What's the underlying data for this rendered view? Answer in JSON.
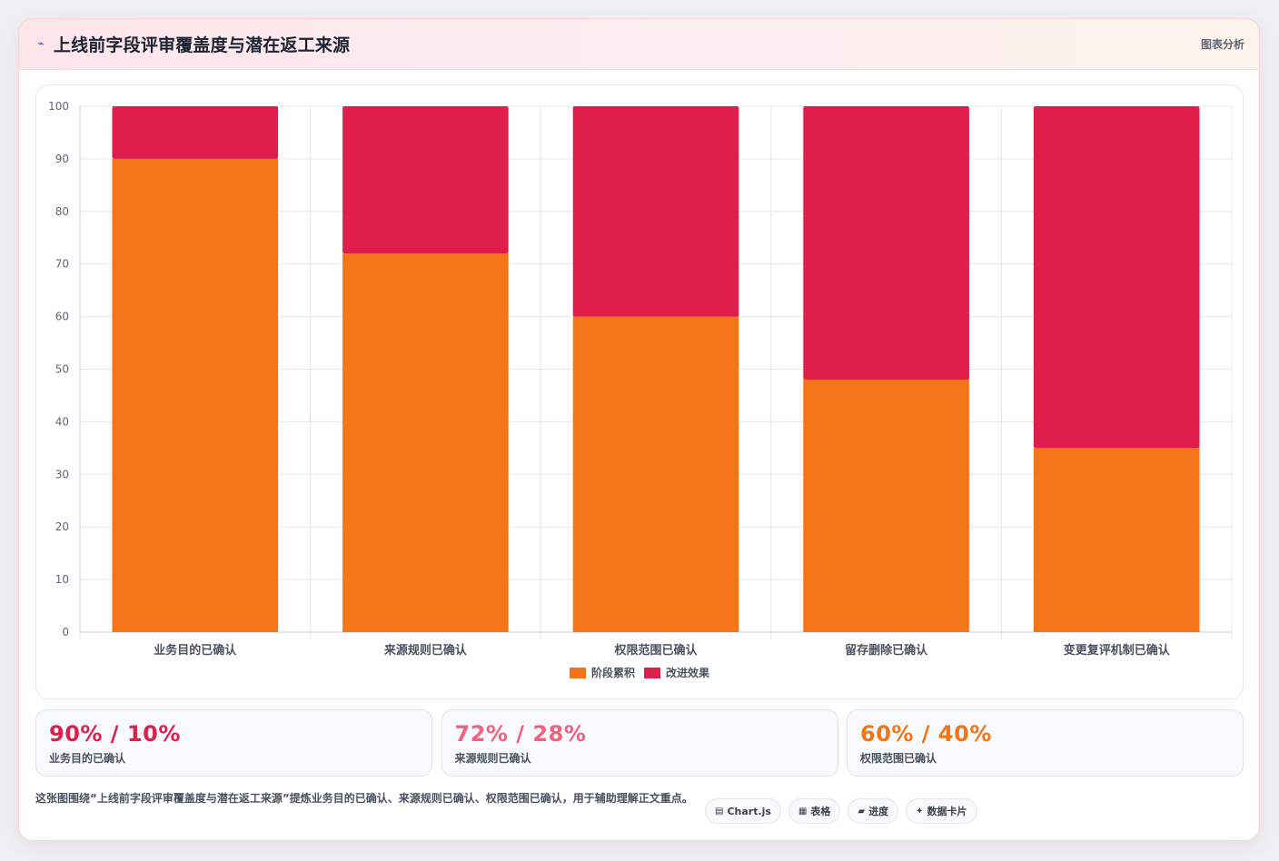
{
  "header": {
    "icon": "zap-icon",
    "title": "上线前字段评审覆盖度与潜在返工来源",
    "tag": "图表分析"
  },
  "chart_data": {
    "type": "bar",
    "stacked": true,
    "categories": [
      "业务目的已确认",
      "来源规则已确认",
      "权限范围已确认",
      "留存删除已确认",
      "变更复评机制已确认"
    ],
    "series": [
      {
        "name": "阶段累积",
        "color": "#f47418",
        "values": [
          90,
          72,
          60,
          48,
          35
        ]
      },
      {
        "name": "改进效果",
        "color": "#e01e4b",
        "values": [
          10,
          28,
          40,
          52,
          65
        ]
      }
    ],
    "yticks": [
      0,
      10,
      20,
      30,
      40,
      50,
      60,
      70,
      80,
      90,
      100
    ],
    "ylim": [
      0,
      100
    ],
    "grid": true,
    "legend": "bottom"
  },
  "stats": [
    {
      "value": "90% / 10%",
      "label": "业务目的已确认",
      "color": "#e01e4b"
    },
    {
      "value": "72% / 28%",
      "label": "来源规则已确认",
      "color": "#f0637f"
    },
    {
      "value": "60% / 40%",
      "label": "权限范围已确认",
      "color": "#f47418"
    }
  ],
  "footer": {
    "text": "这张图围绕“上线前字段评审覆盖度与潜在返工来源”提炼业务目的已确认、来源规则已确认、权限范围已确认，用于辅助理解正文重点。",
    "chips": [
      {
        "icon": "chart-icon",
        "glyph": "▤",
        "label": "Chart.js"
      },
      {
        "icon": "table-icon",
        "glyph": "▦",
        "label": "表格"
      },
      {
        "icon": "progress-icon",
        "glyph": "▰",
        "label": "进度"
      },
      {
        "icon": "sparkle-icon",
        "glyph": "✦",
        "label": "数据卡片"
      }
    ]
  }
}
